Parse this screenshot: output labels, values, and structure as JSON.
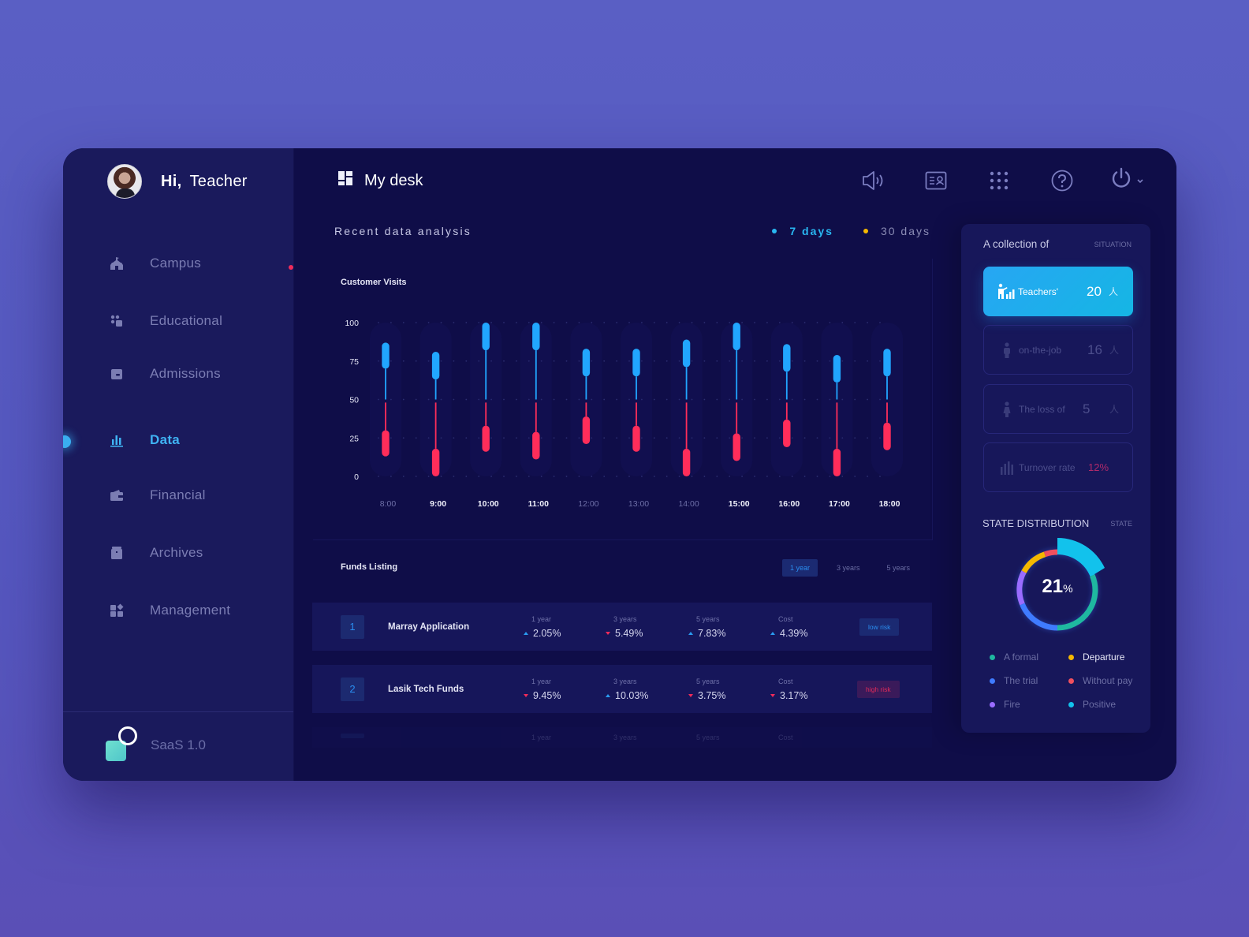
{
  "sidebar": {
    "greeting": "Hi,",
    "user_name": "Teacher",
    "items": [
      {
        "label": "Campus",
        "icon": "campus-icon",
        "active": false,
        "notification": true
      },
      {
        "label": "Educational",
        "icon": "educational-icon",
        "active": false
      },
      {
        "label": "Admissions",
        "icon": "admissions-icon",
        "active": false
      },
      {
        "label": "Data",
        "icon": "bar-chart-icon",
        "active": true
      },
      {
        "label": "Financial",
        "icon": "wallet-icon",
        "active": false
      },
      {
        "label": "Archives",
        "icon": "archive-icon",
        "active": false
      },
      {
        "label": "Management",
        "icon": "management-icon",
        "active": false
      }
    ],
    "footer_label": "SaaS 1.0"
  },
  "header": {
    "title": "My desk",
    "icons": [
      "speaker-icon",
      "id-card-icon",
      "apps-grid-icon",
      "help-icon",
      "power-icon"
    ]
  },
  "analysis": {
    "title": "Recent data analysis",
    "ranges": [
      {
        "label": "7 days",
        "active": true,
        "dot_color": "#29b7f2"
      },
      {
        "label": "30 days",
        "active": false,
        "dot_color": "#f5b800"
      }
    ]
  },
  "chart_data": {
    "type": "candlestick-range",
    "title": "Customer Visits",
    "xlabel": "",
    "ylabel": "",
    "ylim": [
      0,
      100
    ],
    "yticks": [
      0,
      25,
      50,
      75,
      100
    ],
    "categories": [
      "8:00",
      "9:00",
      "10:00",
      "11:00",
      "12:00",
      "13:00",
      "14:00",
      "15:00",
      "16:00",
      "17:00",
      "18:00"
    ],
    "highlighted_categories": [
      "9:00",
      "10:00",
      "11:00",
      "15:00",
      "16:00",
      "17:00",
      "18:00"
    ],
    "grid": true,
    "series": [
      {
        "name": "upper",
        "color": "#21a6ff",
        "whisker_low": 50,
        "body_high": [
          87,
          81,
          100,
          100,
          83,
          83,
          89,
          100,
          86,
          79,
          83
        ],
        "body_low": [
          70,
          63,
          82,
          82,
          65,
          65,
          71,
          82,
          68,
          61,
          65
        ]
      },
      {
        "name": "lower",
        "color": "#ff2d5a",
        "whisker_high": 48,
        "body_high": [
          30,
          18,
          33,
          29,
          39,
          33,
          18,
          28,
          37,
          18,
          35
        ],
        "body_low": [
          13,
          0,
          16,
          11,
          21,
          16,
          0,
          10,
          19,
          0,
          17
        ]
      }
    ]
  },
  "funds": {
    "title": "Funds Listing",
    "tabs": [
      {
        "label": "1 year",
        "active": true
      },
      {
        "label": "3 years",
        "active": false
      },
      {
        "label": "5 years",
        "active": false
      }
    ],
    "column_labels": [
      "1 year",
      "3 years",
      "5 years",
      "Cost"
    ],
    "rows": [
      {
        "num": "1",
        "name": "Marray Application",
        "values": [
          {
            "v": "2.05%",
            "dir": "up"
          },
          {
            "v": "5.49%",
            "dir": "down"
          },
          {
            "v": "7.83%",
            "dir": "up"
          },
          {
            "v": "4.39%",
            "dir": "up"
          }
        ],
        "risk": "low risk",
        "risk_level": "low"
      },
      {
        "num": "2",
        "name": "Lasik Tech Funds",
        "values": [
          {
            "v": "9.45%",
            "dir": "down"
          },
          {
            "v": "10.03%",
            "dir": "up"
          },
          {
            "v": "3.75%",
            "dir": "down"
          },
          {
            "v": "3.17%",
            "dir": "down"
          }
        ],
        "risk": "high risk",
        "risk_level": "high"
      }
    ]
  },
  "situation": {
    "title": "A collection of",
    "subtitle": "SITUATION",
    "stats": [
      {
        "label": "Teachers'",
        "value": "20",
        "unit": "人",
        "icon": "teacher-icon",
        "active": true
      },
      {
        "label": "on-the-job",
        "value": "16",
        "unit": "人",
        "icon": "person-icon",
        "active": false
      },
      {
        "label": "The loss of",
        "value": "5",
        "unit": "人",
        "icon": "person-female-icon",
        "active": false
      },
      {
        "label": "Turnover rate",
        "value": "12%",
        "unit": "",
        "icon": "bars-icon",
        "active": false
      }
    ]
  },
  "distribution": {
    "title": "STATE DISTRIBUTION",
    "subtitle": "STATE",
    "center_value": "21",
    "center_unit": "%",
    "legend": [
      {
        "label": "A formal",
        "color": "#1fb8a0",
        "highlight": false
      },
      {
        "label": "Departure",
        "color": "#f5b800",
        "highlight": true
      },
      {
        "label": "The trial",
        "color": "#3f7bff",
        "highlight": false
      },
      {
        "label": "Without pay",
        "color": "#f0505e",
        "highlight": false
      },
      {
        "label": "Fire",
        "color": "#9a6cff",
        "highlight": false
      },
      {
        "label": "Positive",
        "color": "#12c2ec",
        "highlight": false
      }
    ]
  }
}
